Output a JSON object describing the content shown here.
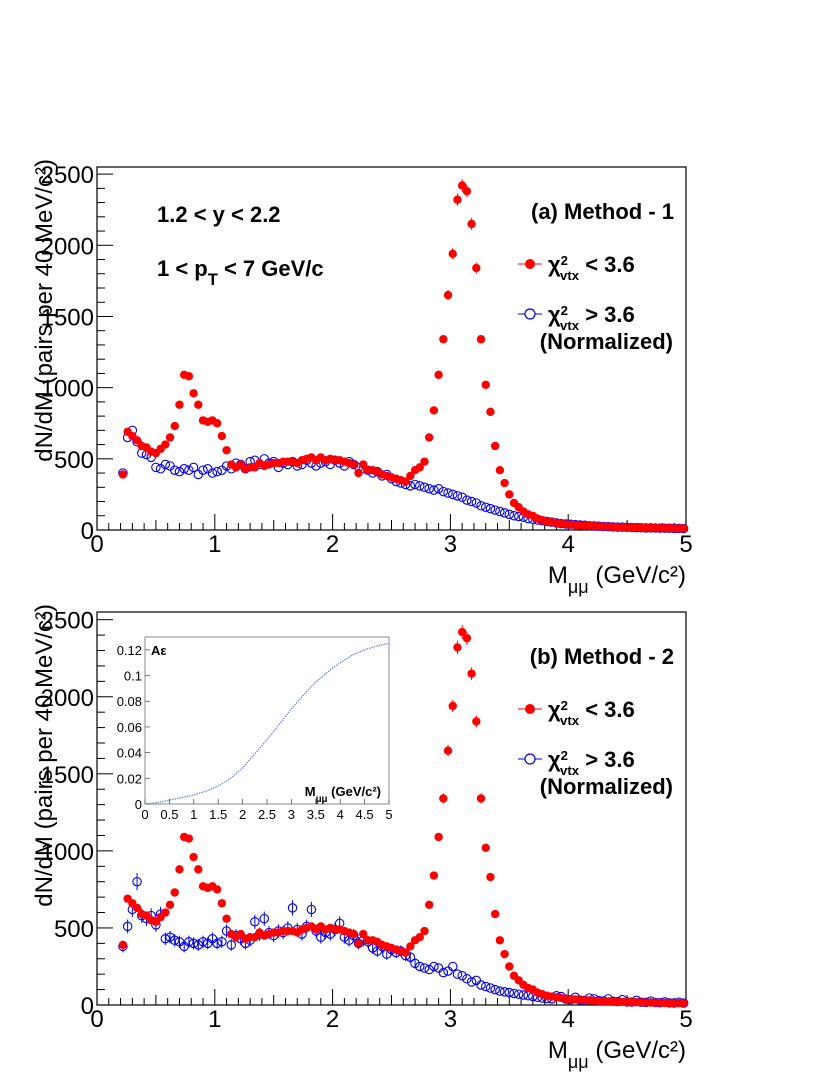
{
  "colors": {
    "red_series": "#ff0000",
    "blue_series": "#0000ee",
    "inset_curve": "#6f7fd0"
  },
  "chart_data": [
    {
      "type": "scatter",
      "panel_label": "(a) Method - 1",
      "annotations": [
        "1.2 < y < 2.2",
        "1 < p_T < 7 GeV/c"
      ],
      "xlabel": "M_μμ (GeV/c²)",
      "ylabel": "dN/dM (pairs per 40 MeV/c²)",
      "xlim": [
        0,
        5
      ],
      "ylim": [
        0,
        2550
      ],
      "xticks": [
        "0",
        "1",
        "2",
        "3",
        "4",
        "5"
      ],
      "yticks": [
        "0",
        "500",
        "1000",
        "1500",
        "2000",
        "2500"
      ],
      "legend_position": "right",
      "series": [
        {
          "name": "χ²_vtx < 3.6",
          "marker": "filled-circle",
          "color": "#ff0000",
          "x": [
            0.22,
            0.26,
            0.3,
            0.34,
            0.38,
            0.42,
            0.46,
            0.5,
            0.54,
            0.58,
            0.62,
            0.66,
            0.7,
            0.74,
            0.78,
            0.82,
            0.86,
            0.9,
            0.94,
            0.98,
            1.02,
            1.06,
            1.1,
            1.14,
            1.18,
            1.22,
            1.26,
            1.3,
            1.34,
            1.38,
            1.42,
            1.46,
            1.5,
            1.54,
            1.58,
            1.62,
            1.66,
            1.7,
            1.74,
            1.78,
            1.82,
            1.86,
            1.9,
            1.94,
            1.98,
            2.02,
            2.06,
            2.1,
            2.14,
            2.18,
            2.22,
            2.26,
            2.3,
            2.34,
            2.38,
            2.42,
            2.46,
            2.5,
            2.54,
            2.58,
            2.62,
            2.66,
            2.7,
            2.74,
            2.78,
            2.82,
            2.86,
            2.9,
            2.94,
            2.98,
            3.02,
            3.06,
            3.1,
            3.14,
            3.18,
            3.22,
            3.26,
            3.3,
            3.34,
            3.38,
            3.42,
            3.46,
            3.5,
            3.54,
            3.58,
            3.62,
            3.66,
            3.7,
            3.74,
            3.78,
            3.82,
            3.86,
            3.9,
            3.94,
            3.98,
            4.02,
            4.06,
            4.1,
            4.14,
            4.18,
            4.22,
            4.26,
            4.3,
            4.34,
            4.38,
            4.42,
            4.46,
            4.5,
            4.54,
            4.58,
            4.62,
            4.66,
            4.7,
            4.74,
            4.78,
            4.82,
            4.86,
            4.9,
            4.94,
            4.98
          ],
          "y": [
            390,
            690,
            660,
            630,
            590,
            580,
            550,
            540,
            570,
            600,
            650,
            730,
            880,
            1090,
            1080,
            960,
            880,
            770,
            760,
            770,
            750,
            660,
            560,
            460,
            440,
            460,
            430,
            440,
            440,
            470,
            450,
            460,
            470,
            470,
            480,
            480,
            480,
            470,
            490,
            500,
            510,
            490,
            510,
            490,
            500,
            490,
            490,
            480,
            470,
            460,
            400,
            460,
            420,
            420,
            410,
            390,
            380,
            370,
            360,
            350,
            340,
            380,
            420,
            440,
            480,
            650,
            840,
            1090,
            1340,
            1650,
            1940,
            2320,
            2420,
            2380,
            2150,
            1840,
            1340,
            1020,
            830,
            590,
            420,
            330,
            250,
            190,
            160,
            130,
            110,
            100,
            80,
            70,
            60,
            55,
            50,
            45,
            40,
            38,
            36,
            33,
            30,
            30,
            28,
            26,
            25,
            24,
            22,
            20,
            20,
            19,
            18,
            18,
            17,
            16,
            15,
            15,
            14,
            13,
            13,
            12,
            12,
            11
          ]
        },
        {
          "name": "χ²_vtx > 3.6 (Normalized)",
          "marker": "open-circle",
          "color": "#0000ee",
          "x": [
            0.22,
            0.26,
            0.3,
            0.34,
            0.38,
            0.42,
            0.46,
            0.5,
            0.54,
            0.58,
            0.62,
            0.66,
            0.7,
            0.74,
            0.78,
            0.82,
            0.86,
            0.9,
            0.94,
            0.98,
            1.02,
            1.06,
            1.1,
            1.14,
            1.18,
            1.22,
            1.26,
            1.3,
            1.34,
            1.38,
            1.42,
            1.46,
            1.5,
            1.54,
            1.58,
            1.62,
            1.66,
            1.7,
            1.74,
            1.78,
            1.82,
            1.86,
            1.9,
            1.94,
            1.98,
            2.02,
            2.06,
            2.1,
            2.14,
            2.18,
            2.22,
            2.26,
            2.3,
            2.34,
            2.38,
            2.42,
            2.46,
            2.5,
            2.54,
            2.58,
            2.62,
            2.66,
            2.7,
            2.74,
            2.78,
            2.82,
            2.86,
            2.9,
            2.94,
            2.98,
            3.02,
            3.06,
            3.1,
            3.14,
            3.18,
            3.22,
            3.26,
            3.3,
            3.34,
            3.38,
            3.42,
            3.46,
            3.5,
            3.54,
            3.58,
            3.62,
            3.66,
            3.7,
            3.74,
            3.78,
            3.82,
            3.86,
            3.9,
            3.94,
            3.98,
            4.02,
            4.06,
            4.1,
            4.14,
            4.18,
            4.22,
            4.26,
            4.3,
            4.34,
            4.38,
            4.42,
            4.46,
            4.5,
            4.54,
            4.58,
            4.62,
            4.66,
            4.7,
            4.74,
            4.78,
            4.82,
            4.86,
            4.9,
            4.94,
            4.98
          ],
          "y": [
            400,
            650,
            700,
            620,
            540,
            530,
            510,
            440,
            430,
            460,
            450,
            420,
            410,
            430,
            420,
            440,
            390,
            420,
            430,
            400,
            410,
            420,
            450,
            430,
            470,
            460,
            430,
            480,
            490,
            460,
            500,
            470,
            480,
            440,
            470,
            460,
            480,
            450,
            460,
            490,
            470,
            450,
            470,
            480,
            460,
            490,
            470,
            450,
            480,
            460,
            440,
            430,
            420,
            400,
            410,
            380,
            390,
            360,
            340,
            330,
            320,
            310,
            320,
            310,
            300,
            290,
            280,
            290,
            270,
            260,
            250,
            240,
            230,
            210,
            200,
            190,
            170,
            160,
            150,
            140,
            130,
            120,
            110,
            100,
            95,
            90,
            80,
            75,
            70,
            65,
            60,
            55,
            50,
            45,
            42,
            40,
            38,
            35,
            33,
            30,
            28,
            26,
            25,
            24,
            22,
            20,
            20,
            19,
            18,
            17,
            16,
            15,
            15,
            14,
            13,
            12,
            12,
            11,
            11,
            10
          ]
        }
      ]
    },
    {
      "type": "scatter",
      "panel_label": "(b) Method - 2",
      "xlabel": "M_μμ (GeV/c²)",
      "ylabel": "dN/dM (pairs per 40 MeV/c²)",
      "xlim": [
        0,
        5
      ],
      "ylim": [
        0,
        2550
      ],
      "xticks": [
        "0",
        "1",
        "2",
        "3",
        "4",
        "5"
      ],
      "yticks": [
        "0",
        "500",
        "1000",
        "1500",
        "2000",
        "2500"
      ],
      "legend_position": "right",
      "series": [
        {
          "name": "χ²_vtx < 3.6",
          "marker": "filled-circle",
          "color": "#ff0000",
          "x": [
            0.22,
            0.26,
            0.3,
            0.34,
            0.38,
            0.42,
            0.46,
            0.5,
            0.54,
            0.58,
            0.62,
            0.66,
            0.7,
            0.74,
            0.78,
            0.82,
            0.86,
            0.9,
            0.94,
            0.98,
            1.02,
            1.06,
            1.1,
            1.14,
            1.18,
            1.22,
            1.26,
            1.3,
            1.34,
            1.38,
            1.42,
            1.46,
            1.5,
            1.54,
            1.58,
            1.62,
            1.66,
            1.7,
            1.74,
            1.78,
            1.82,
            1.86,
            1.9,
            1.94,
            1.98,
            2.02,
            2.06,
            2.1,
            2.14,
            2.18,
            2.22,
            2.26,
            2.3,
            2.34,
            2.38,
            2.42,
            2.46,
            2.5,
            2.54,
            2.58,
            2.62,
            2.66,
            2.7,
            2.74,
            2.78,
            2.82,
            2.86,
            2.9,
            2.94,
            2.98,
            3.02,
            3.06,
            3.1,
            3.14,
            3.18,
            3.22,
            3.26,
            3.3,
            3.34,
            3.38,
            3.42,
            3.46,
            3.5,
            3.54,
            3.58,
            3.62,
            3.66,
            3.7,
            3.74,
            3.78,
            3.82,
            3.86,
            3.9,
            3.94,
            3.98,
            4.02,
            4.06,
            4.1,
            4.14,
            4.18,
            4.22,
            4.26,
            4.3,
            4.34,
            4.38,
            4.42,
            4.46,
            4.5,
            4.54,
            4.58,
            4.62,
            4.66,
            4.7,
            4.74,
            4.78,
            4.82,
            4.86,
            4.9,
            4.94,
            4.98
          ],
          "y": [
            390,
            690,
            660,
            630,
            590,
            580,
            550,
            540,
            570,
            600,
            650,
            730,
            880,
            1090,
            1080,
            960,
            880,
            770,
            760,
            770,
            750,
            660,
            560,
            460,
            440,
            460,
            430,
            440,
            440,
            470,
            450,
            460,
            470,
            470,
            480,
            480,
            480,
            470,
            490,
            500,
            510,
            490,
            510,
            490,
            500,
            490,
            490,
            480,
            470,
            460,
            400,
            460,
            420,
            420,
            410,
            390,
            380,
            370,
            360,
            350,
            340,
            380,
            420,
            440,
            480,
            650,
            840,
            1090,
            1340,
            1650,
            1940,
            2320,
            2420,
            2380,
            2150,
            1840,
            1340,
            1020,
            830,
            590,
            420,
            330,
            250,
            190,
            160,
            130,
            110,
            100,
            80,
            70,
            60,
            55,
            50,
            45,
            40,
            38,
            36,
            33,
            30,
            30,
            28,
            26,
            25,
            24,
            22,
            20,
            20,
            19,
            18,
            18,
            17,
            16,
            15,
            15,
            14,
            13,
            13,
            12,
            12,
            11
          ]
        },
        {
          "name": "χ²_vtx > 3.6 (Normalized)",
          "marker": "open-circle",
          "color": "#0000ee",
          "x": [
            0.22,
            0.26,
            0.3,
            0.34,
            0.38,
            0.42,
            0.46,
            0.5,
            0.54,
            0.58,
            0.62,
            0.66,
            0.7,
            0.74,
            0.78,
            0.82,
            0.86,
            0.9,
            0.94,
            0.98,
            1.02,
            1.06,
            1.1,
            1.14,
            1.18,
            1.22,
            1.26,
            1.3,
            1.34,
            1.38,
            1.42,
            1.46,
            1.5,
            1.54,
            1.58,
            1.62,
            1.66,
            1.7,
            1.74,
            1.78,
            1.82,
            1.86,
            1.9,
            1.94,
            1.98,
            2.02,
            2.06,
            2.1,
            2.14,
            2.18,
            2.22,
            2.26,
            2.3,
            2.34,
            2.38,
            2.42,
            2.46,
            2.5,
            2.54,
            2.58,
            2.62,
            2.66,
            2.7,
            2.74,
            2.78,
            2.82,
            2.86,
            2.9,
            2.94,
            2.98,
            3.02,
            3.06,
            3.1,
            3.14,
            3.18,
            3.22,
            3.26,
            3.3,
            3.34,
            3.38,
            3.42,
            3.46,
            3.5,
            3.54,
            3.58,
            3.62,
            3.66,
            3.7,
            3.74,
            3.78,
            3.82,
            3.86,
            3.9,
            3.94,
            3.98,
            4.02,
            4.06,
            4.1,
            4.14,
            4.18,
            4.22,
            4.26,
            4.3,
            4.34,
            4.38,
            4.42,
            4.46,
            4.5,
            4.54,
            4.58,
            4.62,
            4.66,
            4.7,
            4.74,
            4.78,
            4.82,
            4.86,
            4.9,
            4.94,
            4.98
          ],
          "y": [
            380,
            510,
            620,
            800,
            580,
            560,
            580,
            520,
            590,
            430,
            440,
            420,
            410,
            380,
            410,
            400,
            390,
            410,
            400,
            430,
            400,
            410,
            480,
            390,
            450,
            430,
            400,
            420,
            540,
            460,
            560,
            470,
            450,
            480,
            470,
            500,
            630,
            490,
            460,
            510,
            620,
            480,
            440,
            470,
            460,
            490,
            530,
            440,
            420,
            450,
            400,
            420,
            410,
            370,
            350,
            380,
            330,
            360,
            340,
            350,
            320,
            310,
            270,
            250,
            240,
            230,
            250,
            240,
            210,
            220,
            250,
            200,
            190,
            170,
            150,
            160,
            130,
            120,
            110,
            100,
            90,
            85,
            80,
            75,
            70,
            65,
            60,
            55,
            50,
            45,
            42,
            40,
            60,
            55,
            38,
            35,
            50,
            32,
            30,
            45,
            40,
            28,
            26,
            40,
            24,
            22,
            35,
            20,
            19,
            30,
            18,
            17,
            25,
            16,
            15,
            20,
            14,
            13,
            18,
            12
          ]
        }
      ],
      "inset": {
        "type": "line",
        "label": "Aε",
        "xlabel": "M_μμ (GeV/c²)",
        "xlim": [
          0,
          5
        ],
        "ylim": [
          0,
          0.13
        ],
        "xticks": [
          "0",
          "0.5",
          "1",
          "1.5",
          "2",
          "2.5",
          "3",
          "3.5",
          "4",
          "4.5",
          "5"
        ],
        "yticks": [
          "0",
          "0.02",
          "0.04",
          "0.06",
          "0.08",
          "0.1",
          "0.12"
        ],
        "x": [
          0,
          0.25,
          0.5,
          0.75,
          1.0,
          1.25,
          1.5,
          1.75,
          2.0,
          2.25,
          2.5,
          2.75,
          3.0,
          3.25,
          3.5,
          3.75,
          4.0,
          4.25,
          4.5,
          4.75,
          5.0
        ],
        "y": [
          0.0,
          0.001,
          0.003,
          0.005,
          0.007,
          0.01,
          0.014,
          0.02,
          0.028,
          0.039,
          0.05,
          0.062,
          0.074,
          0.085,
          0.095,
          0.103,
          0.11,
          0.116,
          0.12,
          0.123,
          0.125
        ]
      }
    }
  ]
}
